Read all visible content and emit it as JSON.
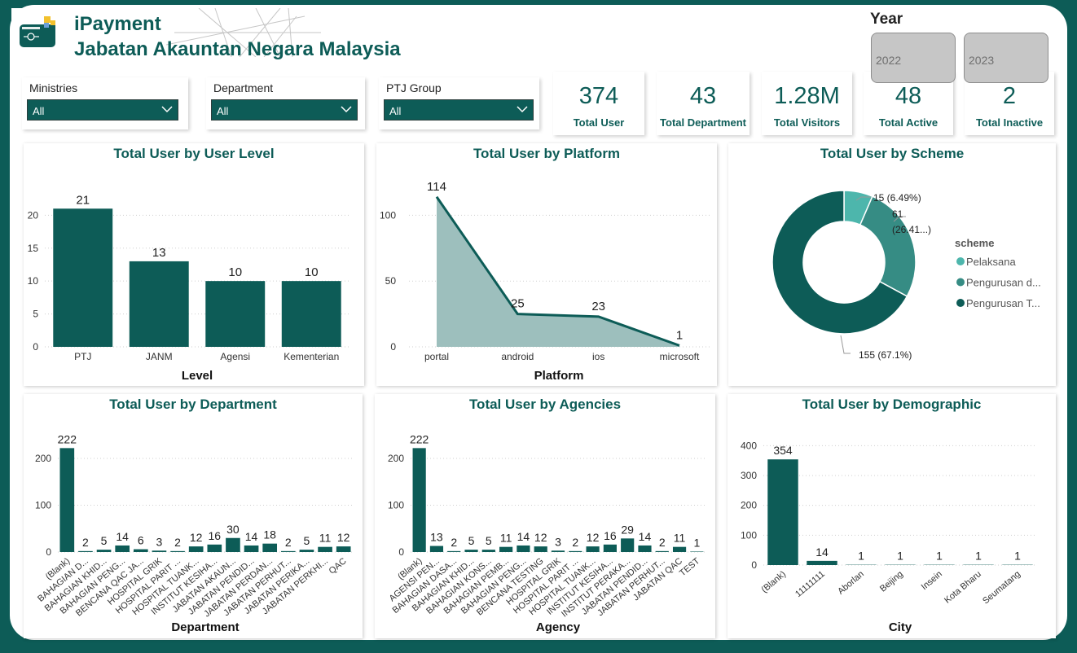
{
  "app": {
    "title": "iPayment",
    "subtitle": "Jabatan Akauntan Negara Malaysia"
  },
  "colors": {
    "primary": "#0d5c57",
    "area_fill": "#9dbfbd",
    "donut": [
      "#4db6ac",
      "#368c84",
      "#0d5c57"
    ]
  },
  "filters": [
    {
      "label": "Ministries",
      "value": "All"
    },
    {
      "label": "Department",
      "value": "All"
    },
    {
      "label": "PTJ Group",
      "value": "All"
    }
  ],
  "kpis": [
    {
      "value": "374",
      "label": "Total User"
    },
    {
      "value": "43",
      "label": "Total Department"
    },
    {
      "value": "1.28M",
      "label": "Total Visitors"
    },
    {
      "value": "48",
      "label": "Total Active"
    },
    {
      "value": "2",
      "label": "Total Inactive"
    }
  ],
  "year": {
    "label": "Year",
    "options": [
      "2022",
      "2023"
    ]
  },
  "chart_data": [
    {
      "type": "bar",
      "title": "Total User by User Level",
      "xlabel": "Level",
      "ylabel": "",
      "categories": [
        "PTJ",
        "JANM",
        "Agensi",
        "Kementerian"
      ],
      "values": [
        21,
        13,
        10,
        10
      ],
      "ylim": [
        0,
        24
      ],
      "yticks": [
        0,
        5,
        10,
        15,
        20
      ],
      "grid": true
    },
    {
      "type": "area",
      "title": "Total User by Platform",
      "xlabel": "Platform",
      "ylabel": "",
      "categories": [
        "portal",
        "android",
        "ios",
        "microsoft"
      ],
      "values": [
        114,
        25,
        23,
        1
      ],
      "ylim": [
        0,
        125
      ],
      "yticks": [
        0,
        50,
        100
      ],
      "grid": true
    },
    {
      "type": "pie",
      "title": "Total User by Scheme",
      "legend_title": "scheme",
      "legend_position": "right",
      "series": [
        {
          "name": "Pelaksana",
          "legend": "Pelaksana",
          "value": 15,
          "label": "15 (6.49%)"
        },
        {
          "name": "Pengurusan d...",
          "legend": "Pengurusan d...",
          "value": 61,
          "label": "61 (26.41...)"
        },
        {
          "name": "Pengurusan T...",
          "legend": "Pengurusan T...",
          "value": 155,
          "label": "155 (67.1%)"
        }
      ]
    },
    {
      "type": "bar",
      "title": "Total User by Department",
      "xlabel": "Department",
      "ylabel": "",
      "categories": [
        "(Blank)",
        "BAHAGIAN D...",
        "BAHAGIAN KHID...",
        "BAHAGIAN PENG...",
        "BENCANA QAC JA...",
        "HOSPITAL GRIK",
        "HOSPITAL PARIT ...",
        "HOSPITAL TUANK...",
        "INSTITUT KESIHA...",
        "JABATAN AKAUN...",
        "JABATAN PENDID...",
        "JABATAN PERDAN...",
        "JABATAN PERHUT...",
        "JABATAN PERIKA...",
        "JABATAN PERKHI...",
        "QAC"
      ],
      "values": [
        222,
        2,
        5,
        14,
        6,
        3,
        2,
        12,
        16,
        30,
        14,
        18,
        2,
        5,
        11,
        12
      ],
      "ylim": [
        0,
        240
      ],
      "yticks": [
        0,
        100,
        200
      ],
      "grid": true
    },
    {
      "type": "bar",
      "title": "Total User by Agencies",
      "xlabel": "Agency",
      "ylabel": "",
      "categories": [
        "(Blank)",
        "AGENSI PEN...",
        "BAHAGIAN DASA...",
        "BAHAGIAN KHID...",
        "BAHAGIAN KONS...",
        "BAHAGIAN PEMB...",
        "BAHAGIAN PENG...",
        "BENCANA TESTING",
        "HOSPITAL GRIK",
        "HOSPITAL PARIT ...",
        "HOSPITAL TUANK...",
        "INSTITUT KESIHA...",
        "INSTITUT PERAKA...",
        "JABATAN PENDID...",
        "JABATAN PERHUT...",
        "JABATAN QAC",
        "TEST"
      ],
      "values": [
        222,
        13,
        2,
        5,
        5,
        11,
        14,
        12,
        3,
        2,
        12,
        16,
        29,
        14,
        2,
        11,
        1
      ],
      "ylim": [
        0,
        240
      ],
      "yticks": [
        0,
        100,
        200
      ],
      "grid": true
    },
    {
      "type": "bar",
      "title": "Total User by Demographic",
      "xlabel": "City",
      "ylabel": "",
      "categories": [
        "(Blank)",
        "11111111",
        "Aborlan",
        "Beijing",
        "Insein",
        "Kota Bharu",
        "Seumatang"
      ],
      "values": [
        354,
        14,
        1,
        1,
        1,
        1,
        1
      ],
      "ylim": [
        0,
        420
      ],
      "yticks": [
        0,
        100,
        200,
        300,
        400
      ],
      "grid": true
    }
  ]
}
